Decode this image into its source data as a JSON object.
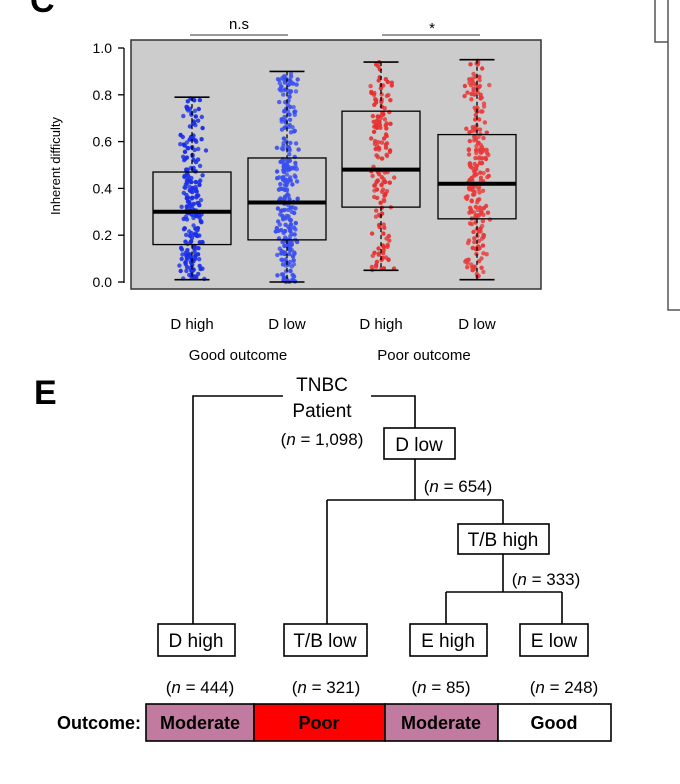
{
  "panel_d": {
    "letter": "C",
    "chart_data": {
      "type": "box",
      "ylabel": "Inherent difficulty",
      "ylim": [
        -0.03,
        1.05
      ],
      "yticks": [
        {
          "value": 0.0,
          "label": "0.0"
        },
        {
          "value": 0.2,
          "label": "0.2"
        },
        {
          "value": 0.4,
          "label": "0.4"
        },
        {
          "value": 0.6,
          "label": "0.6"
        },
        {
          "value": 0.8,
          "label": "0.8"
        },
        {
          "value": 1.0,
          "label": "1.0"
        }
      ],
      "grid": false,
      "groups": [
        {
          "label": "Good outcome",
          "categories": [
            "D high",
            "D low"
          ],
          "significance": "n.s"
        },
        {
          "label": "Poor outcome",
          "categories": [
            "D high",
            "D low"
          ],
          "significance": "*"
        }
      ],
      "boxes": [
        {
          "group": "Good outcome",
          "label": "D high",
          "min": 0.01,
          "q1": 0.16,
          "median": 0.3,
          "q3": 0.47,
          "max": 0.79,
          "color": "#1a2fe8",
          "n": 220
        },
        {
          "group": "Good outcome",
          "label": "D low",
          "min": 0.0,
          "q1": 0.18,
          "median": 0.34,
          "q3": 0.53,
          "max": 0.9,
          "color": "#3a4ff0",
          "n": 260
        },
        {
          "group": "Poor outcome",
          "label": "D high",
          "min": 0.05,
          "q1": 0.32,
          "median": 0.48,
          "q3": 0.73,
          "max": 0.94,
          "color": "#e83030",
          "n": 150
        },
        {
          "group": "Poor outcome",
          "label": "D low",
          "min": 0.01,
          "q1": 0.27,
          "median": 0.42,
          "q3": 0.63,
          "max": 0.95,
          "color": "#e83a3a",
          "n": 220
        }
      ],
      "colors": {
        "panel_bg": "#cccccc",
        "good": "#1a2fe8",
        "poor": "#e83030"
      }
    }
  },
  "panel_e": {
    "letter": "E",
    "tree": {
      "root": {
        "line1": "TNBC",
        "line2": "Patient",
        "n_prefix": "(",
        "n_var": "n",
        "n_suffix": " = 1,098)"
      },
      "d_low": {
        "label": "D low",
        "n_prefix": "(",
        "n_var": "n",
        "n_suffix": " = 654)"
      },
      "tb_high": {
        "label": "T/B high",
        "n_prefix": "(",
        "n_var": "n",
        "n_suffix": " = 333)"
      },
      "leaves": [
        {
          "label": "D high",
          "n_prefix": "(",
          "n_var": "n",
          "n_suffix": " = 444)"
        },
        {
          "label": "T/B low",
          "n_prefix": "(",
          "n_var": "n",
          "n_suffix": " = 321)"
        },
        {
          "label": "E high",
          "n_prefix": "(",
          "n_var": "n",
          "n_suffix": " = 85)"
        },
        {
          "label": "E low",
          "n_prefix": "(",
          "n_var": "n",
          "n_suffix": " = 248)"
        }
      ]
    },
    "outcome": {
      "label": "Outcome:",
      "cells": [
        {
          "label": "Moderate",
          "color": "#c27ba0",
          "text_color": "#000000"
        },
        {
          "label": "Poor",
          "color": "#ff0000",
          "text_color": "#000000"
        },
        {
          "label": "Moderate",
          "color": "#c27ba0",
          "text_color": "#000000"
        },
        {
          "label": "Good",
          "color": "#ffffff",
          "text_color": "#000000"
        }
      ]
    }
  }
}
